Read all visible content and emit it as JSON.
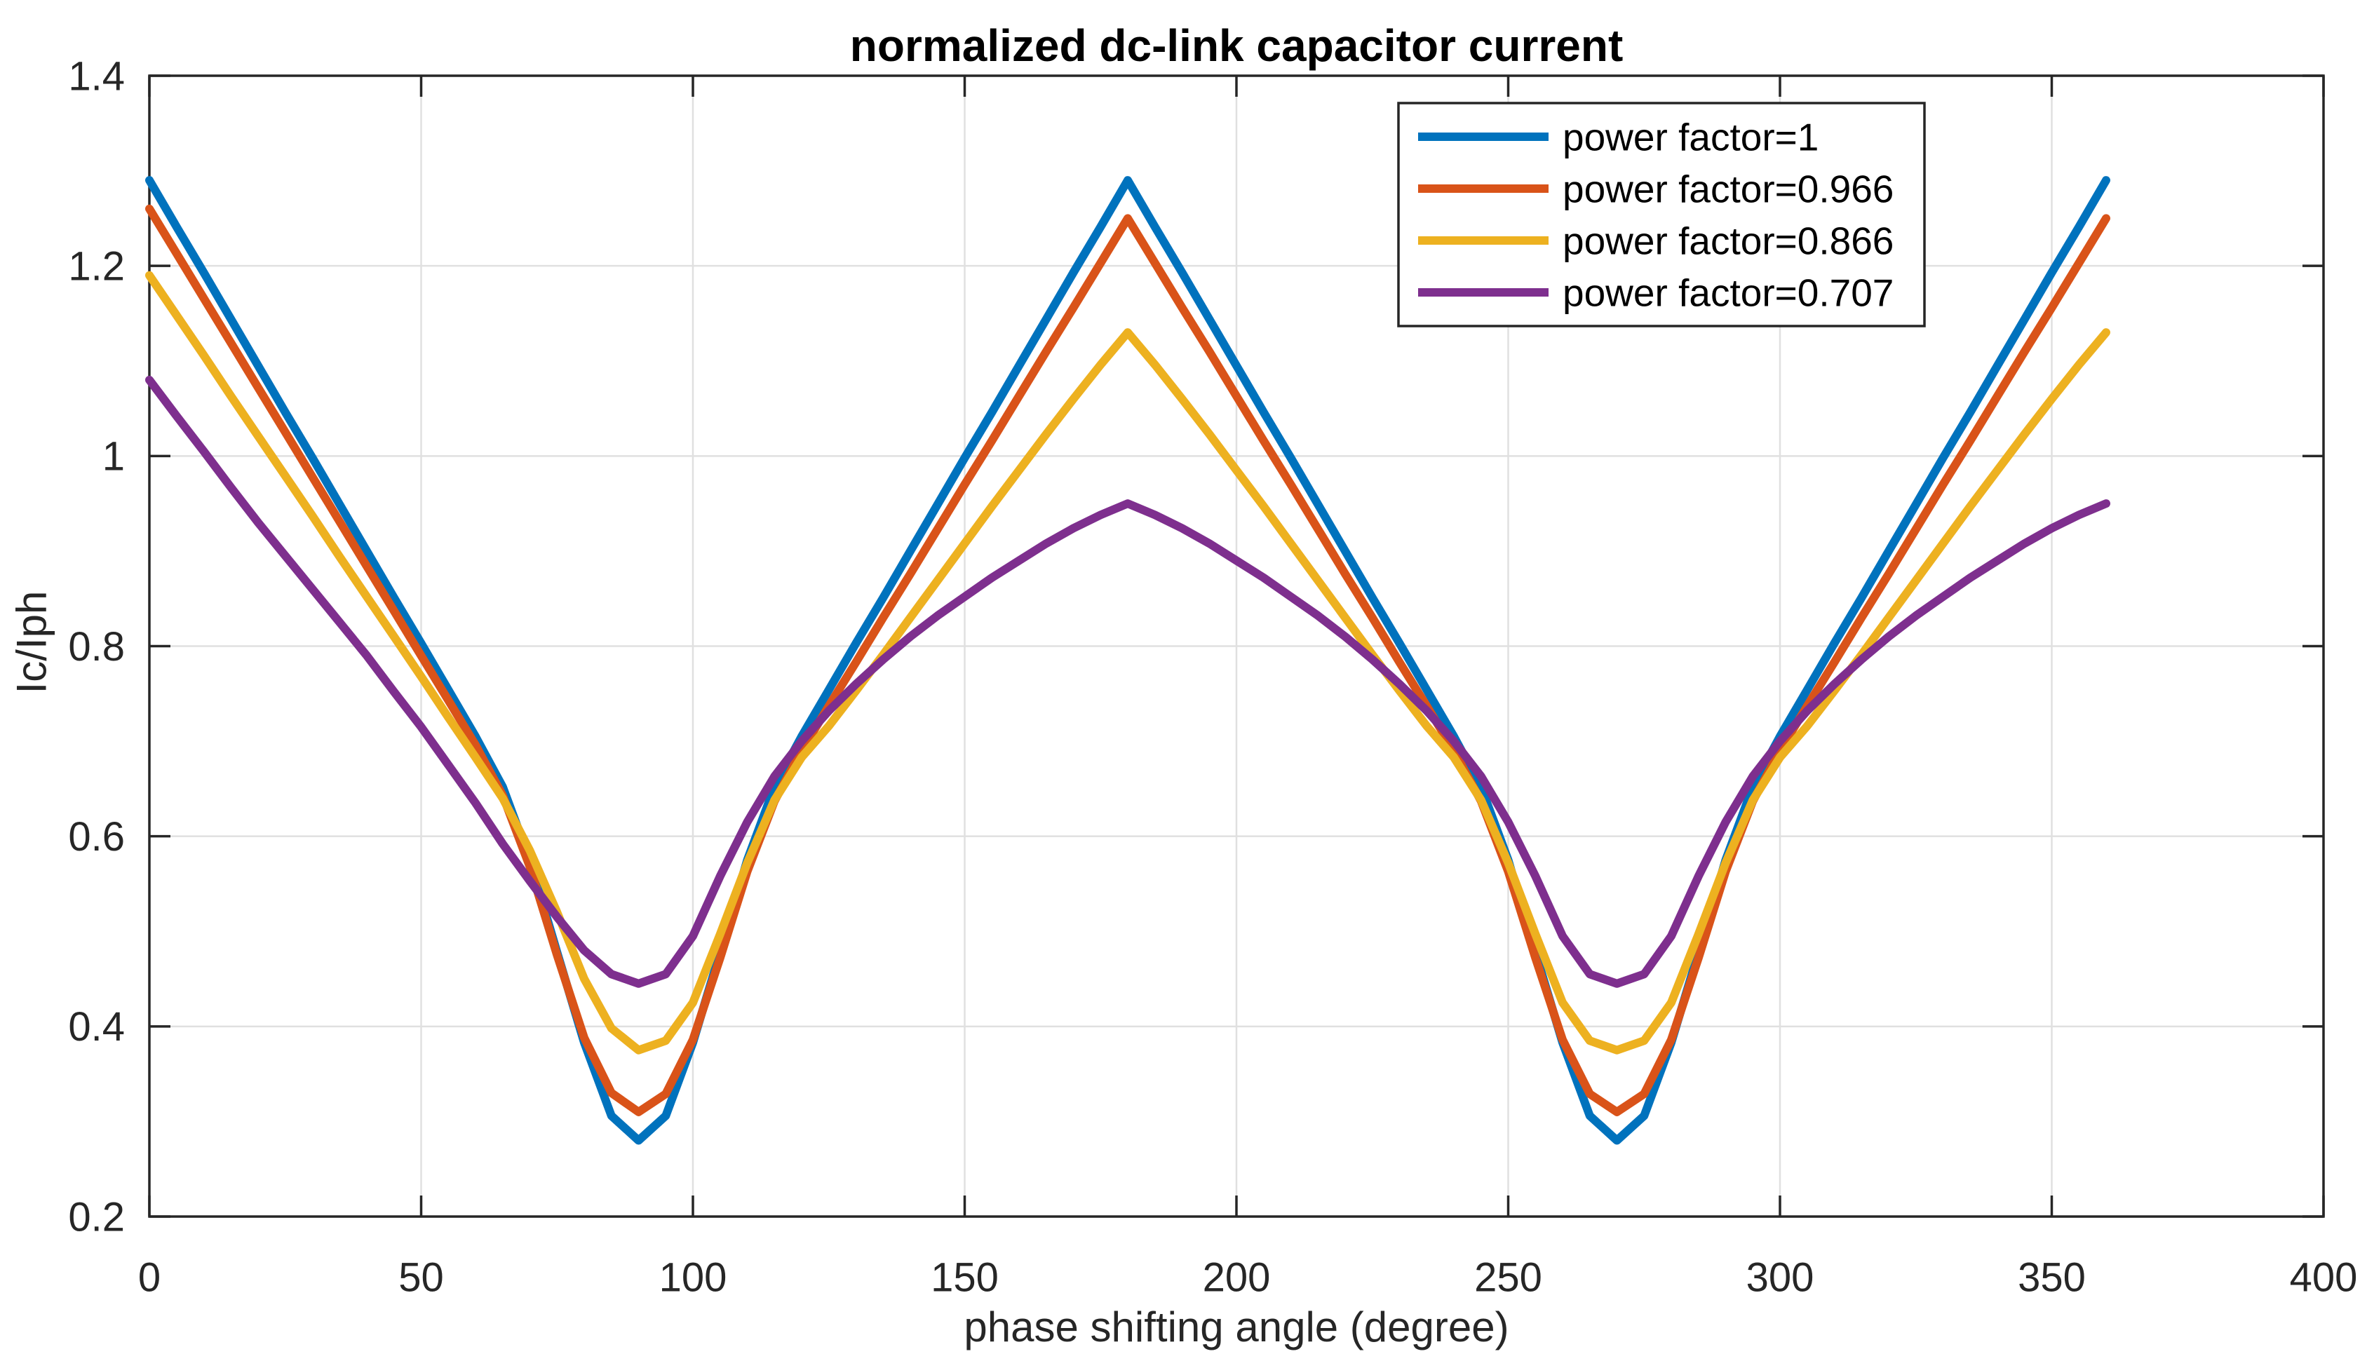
{
  "colors": {
    "background": "#ffffff",
    "axis": "#262626",
    "grid": "#e0e0e0",
    "title_text": "#000000",
    "series_blue": "#0072BD",
    "series_orange": "#D95319",
    "series_yellow": "#EDB120",
    "series_purple": "#7E2F8E"
  },
  "chart_data": {
    "type": "line",
    "title": "normalized dc-link capacitor current",
    "xlabel": "phase shifting angle (degree)",
    "ylabel": "Ic/Iph",
    "xlim": [
      0,
      400
    ],
    "ylim": [
      0.2,
      1.4
    ],
    "x_ticks": [
      0,
      50,
      100,
      150,
      200,
      250,
      300,
      350,
      400
    ],
    "x_tick_labels": [
      "0",
      "50",
      "100",
      "150",
      "200",
      "250",
      "300",
      "350",
      "400"
    ],
    "y_ticks": [
      0.2,
      0.4,
      0.6,
      0.8,
      1.0,
      1.2,
      1.4
    ],
    "y_tick_labels": [
      "0.2",
      "0.4",
      "0.6",
      "0.8",
      "1",
      "1.2",
      "1.4"
    ],
    "grid": true,
    "legend_position": "inside-top-right",
    "x": [
      0,
      5,
      10,
      15,
      20,
      25,
      30,
      35,
      40,
      45,
      50,
      55,
      60,
      65,
      70,
      75,
      80,
      85,
      90,
      95,
      100,
      105,
      110,
      115,
      120,
      125,
      130,
      135,
      140,
      145,
      150,
      155,
      160,
      165,
      170,
      175,
      180,
      185,
      190,
      195,
      200,
      205,
      210,
      215,
      220,
      225,
      230,
      235,
      240,
      245,
      250,
      255,
      260,
      265,
      270,
      275,
      280,
      285,
      290,
      295,
      300,
      305,
      310,
      315,
      320,
      325,
      330,
      335,
      340,
      345,
      350,
      355,
      360
    ],
    "series": [
      {
        "name": "power-factor-1",
        "label": "power factor=1",
        "color": "#0072BD",
        "values": [
          1.29,
          1.241,
          1.193,
          1.144,
          1.095,
          1.046,
          0.998,
          0.949,
          0.9,
          0.851,
          0.803,
          0.754,
          0.705,
          0.652,
          0.575,
          0.478,
          0.383,
          0.306,
          0.28,
          0.306,
          0.383,
          0.478,
          0.575,
          0.652,
          0.705,
          0.754,
          0.803,
          0.851,
          0.9,
          0.949,
          0.998,
          1.046,
          1.095,
          1.144,
          1.193,
          1.241,
          1.29,
          1.241,
          1.193,
          1.144,
          1.095,
          1.046,
          0.998,
          0.949,
          0.9,
          0.851,
          0.803,
          0.754,
          0.705,
          0.652,
          0.575,
          0.478,
          0.383,
          0.306,
          0.28,
          0.306,
          0.383,
          0.478,
          0.575,
          0.652,
          0.705,
          0.754,
          0.803,
          0.851,
          0.9,
          0.949,
          0.998,
          1.046,
          1.095,
          1.144,
          1.193,
          1.241,
          1.29
        ]
      },
      {
        "name": "power-factor-0966",
        "label": "power factor=0.966",
        "color": "#D95319",
        "values": [
          1.26,
          1.213,
          1.166,
          1.119,
          1.072,
          1.025,
          0.978,
          0.931,
          0.884,
          0.837,
          0.79,
          0.743,
          0.696,
          0.643,
          0.568,
          0.475,
          0.388,
          0.33,
          0.31,
          0.329,
          0.386,
          0.472,
          0.563,
          0.637,
          0.69,
          0.737,
          0.783,
          0.83,
          0.876,
          0.923,
          0.97,
          1.016,
          1.063,
          1.11,
          1.156,
          1.203,
          1.25,
          1.203,
          1.156,
          1.11,
          1.063,
          1.016,
          0.97,
          0.923,
          0.876,
          0.83,
          0.783,
          0.737,
          0.69,
          0.637,
          0.563,
          0.472,
          0.386,
          0.329,
          0.31,
          0.329,
          0.386,
          0.472,
          0.563,
          0.637,
          0.69,
          0.737,
          0.783,
          0.83,
          0.876,
          0.923,
          0.97,
          1.016,
          1.063,
          1.11,
          1.156,
          1.203,
          1.25
        ]
      },
      {
        "name": "power-factor-0866",
        "label": "power factor=0.866",
        "color": "#EDB120",
        "values": [
          1.19,
          1.148,
          1.106,
          1.063,
          1.021,
          0.979,
          0.937,
          0.894,
          0.852,
          0.81,
          0.768,
          0.725,
          0.683,
          0.64,
          0.585,
          0.52,
          0.45,
          0.398,
          0.375,
          0.385,
          0.425,
          0.497,
          0.572,
          0.638,
          0.683,
          0.716,
          0.753,
          0.791,
          0.83,
          0.869,
          0.908,
          0.947,
          0.985,
          1.023,
          1.06,
          1.096,
          1.13,
          1.096,
          1.06,
          1.023,
          0.985,
          0.947,
          0.908,
          0.869,
          0.83,
          0.791,
          0.753,
          0.716,
          0.683,
          0.638,
          0.572,
          0.497,
          0.425,
          0.385,
          0.375,
          0.385,
          0.425,
          0.497,
          0.572,
          0.638,
          0.683,
          0.716,
          0.753,
          0.791,
          0.83,
          0.869,
          0.908,
          0.947,
          0.985,
          1.023,
          1.06,
          1.096,
          1.13
        ]
      },
      {
        "name": "power-factor-0707",
        "label": "power factor=0.707",
        "color": "#7E2F8E",
        "values": [
          1.08,
          1.042,
          1.005,
          0.967,
          0.93,
          0.895,
          0.86,
          0.825,
          0.79,
          0.752,
          0.715,
          0.675,
          0.635,
          0.592,
          0.553,
          0.515,
          0.48,
          0.455,
          0.445,
          0.455,
          0.495,
          0.558,
          0.615,
          0.663,
          0.7,
          0.732,
          0.76,
          0.786,
          0.81,
          0.832,
          0.852,
          0.872,
          0.89,
          0.908,
          0.924,
          0.938,
          0.95,
          0.938,
          0.924,
          0.908,
          0.89,
          0.872,
          0.852,
          0.832,
          0.81,
          0.786,
          0.76,
          0.732,
          0.7,
          0.663,
          0.615,
          0.558,
          0.495,
          0.455,
          0.445,
          0.455,
          0.495,
          0.558,
          0.615,
          0.663,
          0.7,
          0.732,
          0.76,
          0.786,
          0.81,
          0.832,
          0.852,
          0.872,
          0.89,
          0.908,
          0.924,
          0.938,
          0.95
        ]
      }
    ]
  }
}
